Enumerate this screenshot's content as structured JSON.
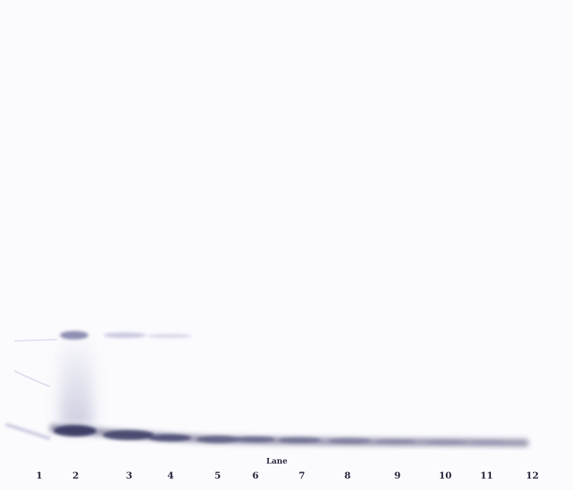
{
  "caption": "Lane",
  "lanes": [
    "1",
    "2",
    "3",
    "4",
    "5",
    "6",
    "7",
    "8",
    "9",
    "10",
    "11",
    "12"
  ],
  "colors": {
    "background": "#fbfbfe",
    "band": "#3b3b66",
    "text": "#2a2a40"
  }
}
